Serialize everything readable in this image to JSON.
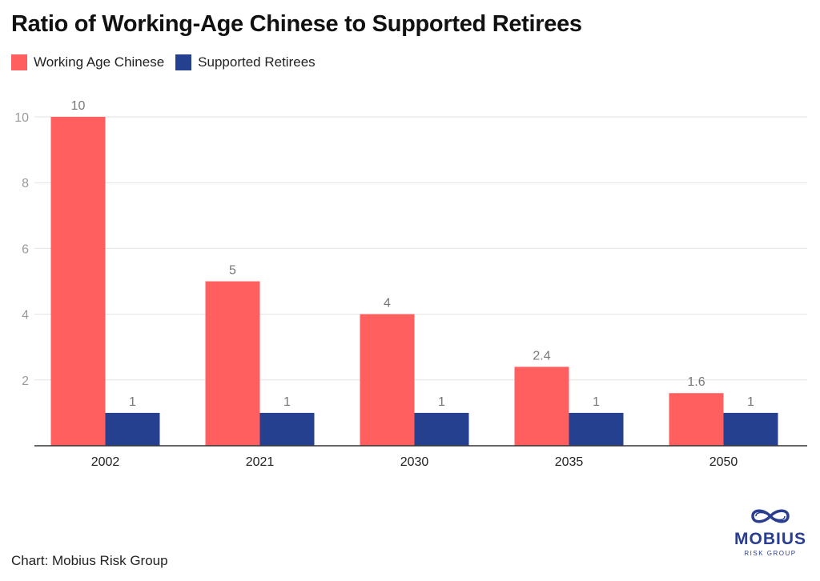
{
  "title": "Ratio of Working-Age Chinese to Supported Retirees",
  "legend": [
    {
      "label": "Working Age Chinese",
      "color": "#ff5f5f"
    },
    {
      "label": "Supported Retirees",
      "color": "#24408e"
    }
  ],
  "source": "Chart: Mobius Risk Group",
  "logo": {
    "word": "MOBIUS",
    "sub": "RISK GROUP",
    "icon": "mobius-loop-icon"
  },
  "chart_data": {
    "type": "bar",
    "categories": [
      "2002",
      "2021",
      "2030",
      "2035",
      "2050"
    ],
    "series": [
      {
        "name": "Working Age Chinese",
        "color": "#ff5f5f",
        "values": [
          10,
          5,
          4,
          2.4,
          1.6
        ],
        "labels": [
          "10",
          "5",
          "4",
          "2.4",
          "1.6"
        ]
      },
      {
        "name": "Supported Retirees",
        "color": "#24408e",
        "values": [
          1,
          1,
          1,
          1,
          1
        ],
        "labels": [
          "1",
          "1",
          "1",
          "1",
          "1"
        ]
      }
    ],
    "yticks": [
      "2",
      "4",
      "6",
      "8",
      "10"
    ],
    "ylim": [
      0,
      10
    ],
    "grid": true,
    "legend_position": "top-left"
  }
}
